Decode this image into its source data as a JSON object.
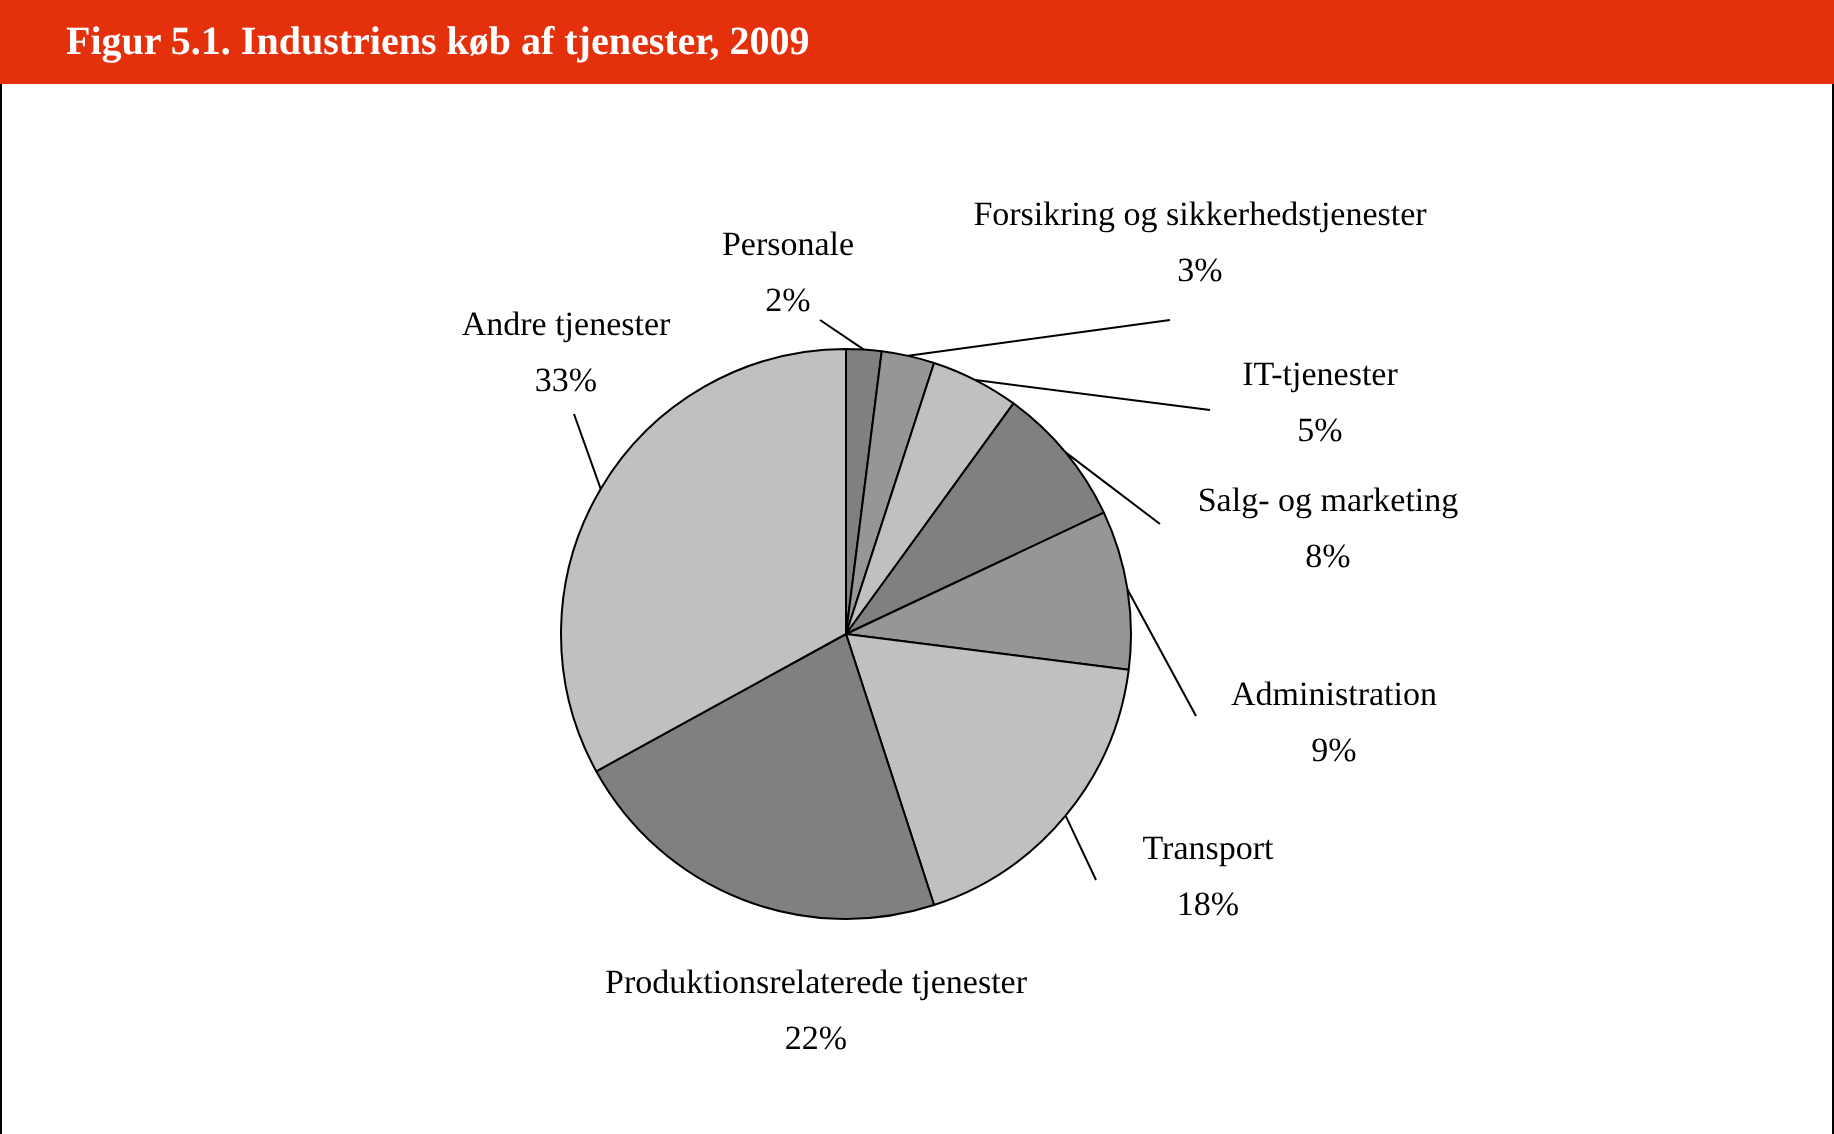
{
  "chart_data": {
    "type": "pie",
    "title": "Figur 5.1. Industriens køb af tjenester, 2009",
    "categories": [
      "Personale",
      "Forsikring og sikkerhedstjenester",
      "IT-tjenester",
      "Salg- og marketing",
      "Administration",
      "Transport",
      "Produktionsrelaterede tjenester",
      "Andre tjenester"
    ],
    "values": [
      2,
      3,
      5,
      8,
      9,
      18,
      22,
      33
    ],
    "colors": [
      "#808080",
      "#969696",
      "#c0c0c0",
      "#808080",
      "#969696",
      "#c0c0c0",
      "#808080",
      "#c0c0c0"
    ],
    "value_labels": [
      "2%",
      "3%",
      "5%",
      "8%",
      "9%",
      "18%",
      "22%",
      "33%"
    ]
  }
}
